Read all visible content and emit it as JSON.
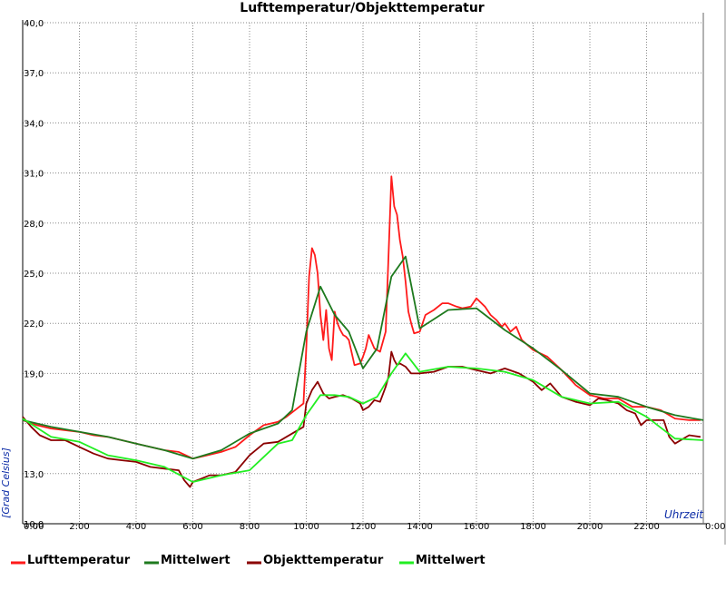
{
  "chart_data": {
    "type": "line",
    "title": "Lufttemperatur/Objekttemperatur",
    "xlabel": "Uhrzeit",
    "ylabel": "[Grad Celsius]",
    "xlim": [
      0,
      24
    ],
    "ylim": [
      10,
      40
    ],
    "xticks": [
      0,
      2,
      4,
      6,
      8,
      10,
      12,
      14,
      16,
      18,
      20,
      22,
      24
    ],
    "xtick_labels": [
      "0:00",
      "2:00",
      "4:00",
      "6:00",
      "8:00",
      "10:00",
      "12:00",
      "14:00",
      "16:00",
      "18:00",
      "20:00",
      "22:00",
      "0:00"
    ],
    "yticks": [
      10,
      13,
      16,
      19,
      22,
      25,
      28,
      31,
      34,
      37,
      40
    ],
    "ytick_labels": [
      "10,0",
      "13,0",
      "",
      "19,0",
      "22,0",
      "25,0",
      "28,0",
      "31,0",
      "34,0",
      "37,0",
      "40,0"
    ],
    "grid": true,
    "legend_position": "bottom",
    "series": [
      {
        "name": "Lufttemperatur",
        "color": "#ff1a1a",
        "x": [
          0,
          0.5,
          1,
          1.5,
          2,
          2.5,
          3,
          3.5,
          4,
          4.5,
          5,
          5.5,
          6,
          6.5,
          7,
          7.5,
          8,
          8.5,
          9,
          9.3,
          9.6,
          9.9,
          10,
          10.1,
          10.2,
          10.3,
          10.4,
          10.5,
          10.6,
          10.7,
          10.8,
          10.9,
          11,
          11.1,
          11.2,
          11.3,
          11.4,
          11.5,
          11.7,
          11.9,
          12,
          12.1,
          12.2,
          12.4,
          12.6,
          12.8,
          12.9,
          13,
          13.1,
          13.2,
          13.3,
          13.4,
          13.5,
          13.6,
          13.7,
          13.8,
          14,
          14.2,
          14.5,
          14.8,
          15,
          15.3,
          15.5,
          15.8,
          16,
          16.3,
          16.5,
          16.7,
          16.9,
          17,
          17.2,
          17.4,
          17.6,
          18,
          18.5,
          19,
          19.5,
          20,
          20.5,
          21,
          21.5,
          22,
          22.5,
          23,
          23.5,
          23.9
        ],
        "values": [
          16.2,
          15.9,
          15.7,
          15.6,
          15.5,
          15.3,
          15.2,
          15.0,
          14.8,
          14.6,
          14.4,
          14.3,
          13.9,
          14.1,
          14.3,
          14.6,
          15.3,
          15.9,
          16.1,
          16.4,
          16.8,
          17.2,
          20.5,
          24.8,
          26.5,
          26.1,
          25.0,
          22.5,
          21.0,
          22.8,
          20.5,
          19.8,
          22.7,
          22.0,
          21.6,
          21.3,
          21.2,
          21.0,
          19.5,
          19.6,
          20.0,
          20.5,
          21.3,
          20.5,
          20.3,
          21.5,
          26.0,
          30.8,
          29.0,
          28.5,
          27.0,
          26.0,
          24.5,
          22.7,
          22.0,
          21.4,
          21.5,
          22.5,
          22.8,
          23.2,
          23.2,
          23.0,
          22.9,
          23.0,
          23.5,
          23.0,
          22.5,
          22.2,
          21.8,
          22.0,
          21.5,
          21.8,
          21.0,
          20.4,
          20.0,
          19.2,
          18.3,
          17.7,
          17.5,
          17.5,
          17.0,
          17.0,
          16.8,
          16.3,
          16.2,
          16.2
        ]
      },
      {
        "name": "Mittelwert",
        "color": "#1e7a1e",
        "x": [
          0,
          1,
          2,
          3,
          4,
          5,
          6,
          7,
          8,
          9,
          9.5,
          10,
          10.5,
          11,
          11.5,
          12,
          12.5,
          13,
          13.5,
          14,
          15,
          16,
          17,
          18,
          19,
          20,
          21,
          22,
          23,
          24
        ],
        "values": [
          16.2,
          15.8,
          15.5,
          15.2,
          14.8,
          14.4,
          13.9,
          14.4,
          15.4,
          16.0,
          16.8,
          21.5,
          24.2,
          22.5,
          21.5,
          19.3,
          20.5,
          24.8,
          26.0,
          21.7,
          22.8,
          22.9,
          21.6,
          20.5,
          19.2,
          17.8,
          17.6,
          17.0,
          16.5,
          16.2
        ]
      },
      {
        "name": "Objekttemperatur",
        "color": "#8b0000",
        "x": [
          0,
          0.3,
          0.6,
          1,
          1.5,
          2,
          2.5,
          3,
          3.5,
          4,
          4.5,
          5,
          5.5,
          5.7,
          5.9,
          6,
          6.3,
          6.6,
          7,
          7.5,
          8,
          8.5,
          9,
          9.3,
          9.6,
          9.9,
          10,
          10.2,
          10.4,
          10.6,
          10.8,
          11,
          11.3,
          11.6,
          11.9,
          12,
          12.2,
          12.4,
          12.6,
          12.8,
          12.9,
          13,
          13.1,
          13.2,
          13.3,
          13.5,
          13.7,
          14,
          14.5,
          15,
          15.5,
          16,
          16.5,
          17,
          17.5,
          18,
          18.3,
          18.6,
          19,
          19.5,
          20,
          20.3,
          20.6,
          21,
          21.3,
          21.6,
          21.8,
          22,
          22.3,
          22.6,
          22.8,
          23,
          23.5,
          23.9
        ],
        "values": [
          16.4,
          15.8,
          15.3,
          15.0,
          15.0,
          14.6,
          14.2,
          13.9,
          13.8,
          13.7,
          13.4,
          13.3,
          13.2,
          12.6,
          12.2,
          12.5,
          12.7,
          12.9,
          12.9,
          13.1,
          14.1,
          14.8,
          14.9,
          15.2,
          15.5,
          15.8,
          17.2,
          18.0,
          18.5,
          17.8,
          17.5,
          17.6,
          17.7,
          17.5,
          17.2,
          16.8,
          17.0,
          17.4,
          17.3,
          18.2,
          18.8,
          20.3,
          19.8,
          19.5,
          19.6,
          19.4,
          19.0,
          19.0,
          19.1,
          19.4,
          19.4,
          19.2,
          19.0,
          19.3,
          19.0,
          18.5,
          18.0,
          18.4,
          17.6,
          17.3,
          17.1,
          17.5,
          17.4,
          17.2,
          16.8,
          16.6,
          15.9,
          16.2,
          16.2,
          16.2,
          15.2,
          14.8,
          15.3,
          15.2
        ]
      },
      {
        "name": "Mittelwert",
        "color": "#22ee22",
        "x": [
          0,
          1,
          2,
          3,
          4,
          5,
          6,
          7,
          8,
          9,
          9.5,
          10,
          10.5,
          11,
          11.5,
          12,
          12.5,
          13,
          13.5,
          14,
          15,
          16,
          17,
          18,
          19,
          20,
          21,
          22,
          23,
          24
        ],
        "values": [
          16.3,
          15.2,
          14.9,
          14.1,
          13.8,
          13.4,
          12.5,
          12.9,
          13.2,
          14.8,
          15.0,
          16.5,
          17.7,
          17.7,
          17.6,
          17.2,
          17.6,
          19.0,
          20.2,
          19.1,
          19.4,
          19.3,
          19.1,
          18.6,
          17.6,
          17.2,
          17.3,
          16.4,
          15.1,
          15.0
        ]
      }
    ]
  }
}
